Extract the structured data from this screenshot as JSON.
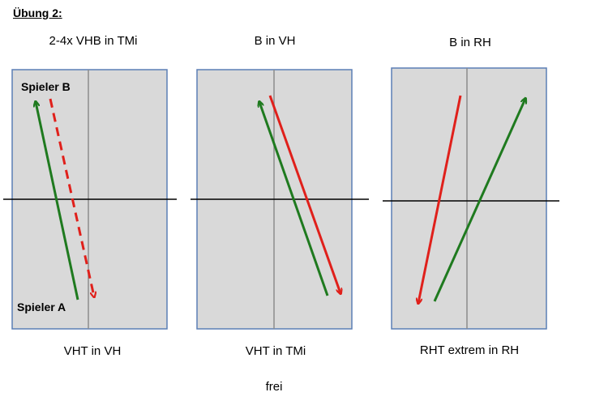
{
  "heading": "Übung 2:",
  "drills": [
    {
      "top_label": "2-4x VHB in TMi",
      "bottom_label": "VHT in VH",
      "player_top": "Spieler B",
      "player_bottom": "Spieler A",
      "arrows": [
        {
          "color": "#1f7a1f",
          "style": "solid",
          "name": "green-arrow"
        },
        {
          "color": "#e0201b",
          "style": "dashed",
          "name": "red-dashed-arrow"
        }
      ]
    },
    {
      "top_label": "B in VH",
      "bottom_label": "VHT in TMi",
      "arrows": [
        {
          "color": "#1f7a1f",
          "style": "solid",
          "name": "green-arrow"
        },
        {
          "color": "#e0201b",
          "style": "solid",
          "name": "red-arrow"
        }
      ]
    },
    {
      "top_label": "B in RH",
      "bottom_label": "RHT extrem in RH",
      "arrows": [
        {
          "color": "#e0201b",
          "style": "solid",
          "name": "red-arrow"
        },
        {
          "color": "#1f7a1f",
          "style": "solid",
          "name": "green-arrow"
        }
      ]
    }
  ],
  "footer": "frei",
  "colors": {
    "green": "#1f7a1f",
    "red": "#e0201b",
    "table": "#d9d9d9",
    "border": "#5b7fb5"
  }
}
